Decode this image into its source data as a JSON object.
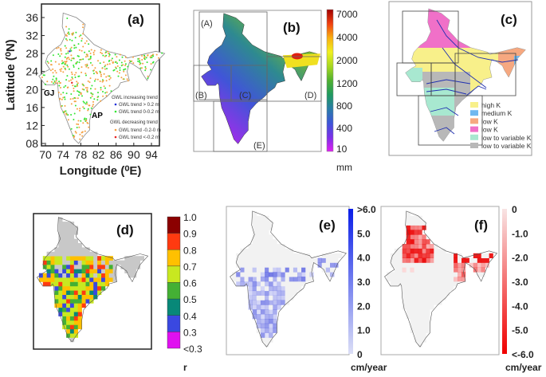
{
  "panel_a": {
    "label": "(a)",
    "ylabel": "Latitude (⁰N)",
    "xlabel": "Longitude (⁰E)",
    "yticks": [
      "36",
      "32",
      "28",
      "24",
      "20",
      "16",
      "12",
      "08"
    ],
    "xticks": [
      "70",
      "74",
      "78",
      "82",
      "86",
      "90",
      "94"
    ],
    "region_labels": [
      "GJ",
      "AP"
    ],
    "legend": {
      "increasing_title": "GWL increasing trend",
      "increasing": [
        {
          "label": "GWL trend > 0.2 m",
          "color": "#1f2fd8"
        },
        {
          "label": "GWL trend 0-0.2 m",
          "color": "#33e633"
        }
      ],
      "decreasing_title": "GWL decreasing trend",
      "decreasing": [
        {
          "label": "GWL trend -0.2-0 m",
          "color": "#f5a040"
        },
        {
          "label": "GWL trend <-0.2 m",
          "color": "#e82020"
        }
      ]
    }
  },
  "panel_b": {
    "label": "(b)",
    "box_labels": [
      "(A)",
      "(B)",
      "(C)",
      "(D)",
      "(E)"
    ],
    "colorbar_labels": [
      "7000",
      "4000",
      "2000",
      "1200",
      "800",
      "400",
      "10"
    ],
    "unit": "mm",
    "colors": [
      "#e020f0",
      "#7a30e8",
      "#3d55d8",
      "#2a7ca8",
      "#1f9a60",
      "#50b030",
      "#a8d820",
      "#f0f020",
      "#f8b010",
      "#f04010",
      "#a00000"
    ]
  },
  "panel_c": {
    "label": "(c)",
    "legend": [
      {
        "label": "high K",
        "color": "#f8f08a"
      },
      {
        "label": "medium K",
        "color": "#70b8f0"
      },
      {
        "label": "low K",
        "color": "#f6a880"
      },
      {
        "label": "low K",
        "color": "#f070c8"
      },
      {
        "label": "low to variable K",
        "color": "#a8e8d0"
      },
      {
        "label": "low to variable K",
        "color": "#b8b8b8"
      }
    ],
    "river_color": "#2030b0"
  },
  "panel_d": {
    "label": "(d)",
    "colorbar_labels": [
      "1.0",
      "0.9",
      "0.8",
      "0.7",
      "0.6",
      "0.5",
      "0.4",
      "0.3",
      "<0.3"
    ],
    "unit": "r",
    "colors": [
      "#8b0000",
      "#ff3a10",
      "#ffc000",
      "#c8e820",
      "#44b034",
      "#088878",
      "#3a48e0",
      "#e010f0"
    ],
    "nodata_color": "#c8c8c8"
  },
  "panel_e": {
    "label": "(e)",
    "colorbar_labels": [
      ">6.0",
      "5.0",
      "4.0",
      "3.0",
      "2.0",
      "1.0",
      "0"
    ],
    "unit": "cm/year",
    "color_max": "#0a1ee8",
    "color_min": "#dcdff6"
  },
  "panel_f": {
    "label": "(f)",
    "colorbar_labels": [
      "0",
      "-1.0",
      "-2.0",
      "-3.0",
      "-4.0",
      "-5.0",
      "<-6.0"
    ],
    "unit": "cm/year",
    "color_max": "#f00000",
    "color_min": "#f8e4e4"
  }
}
